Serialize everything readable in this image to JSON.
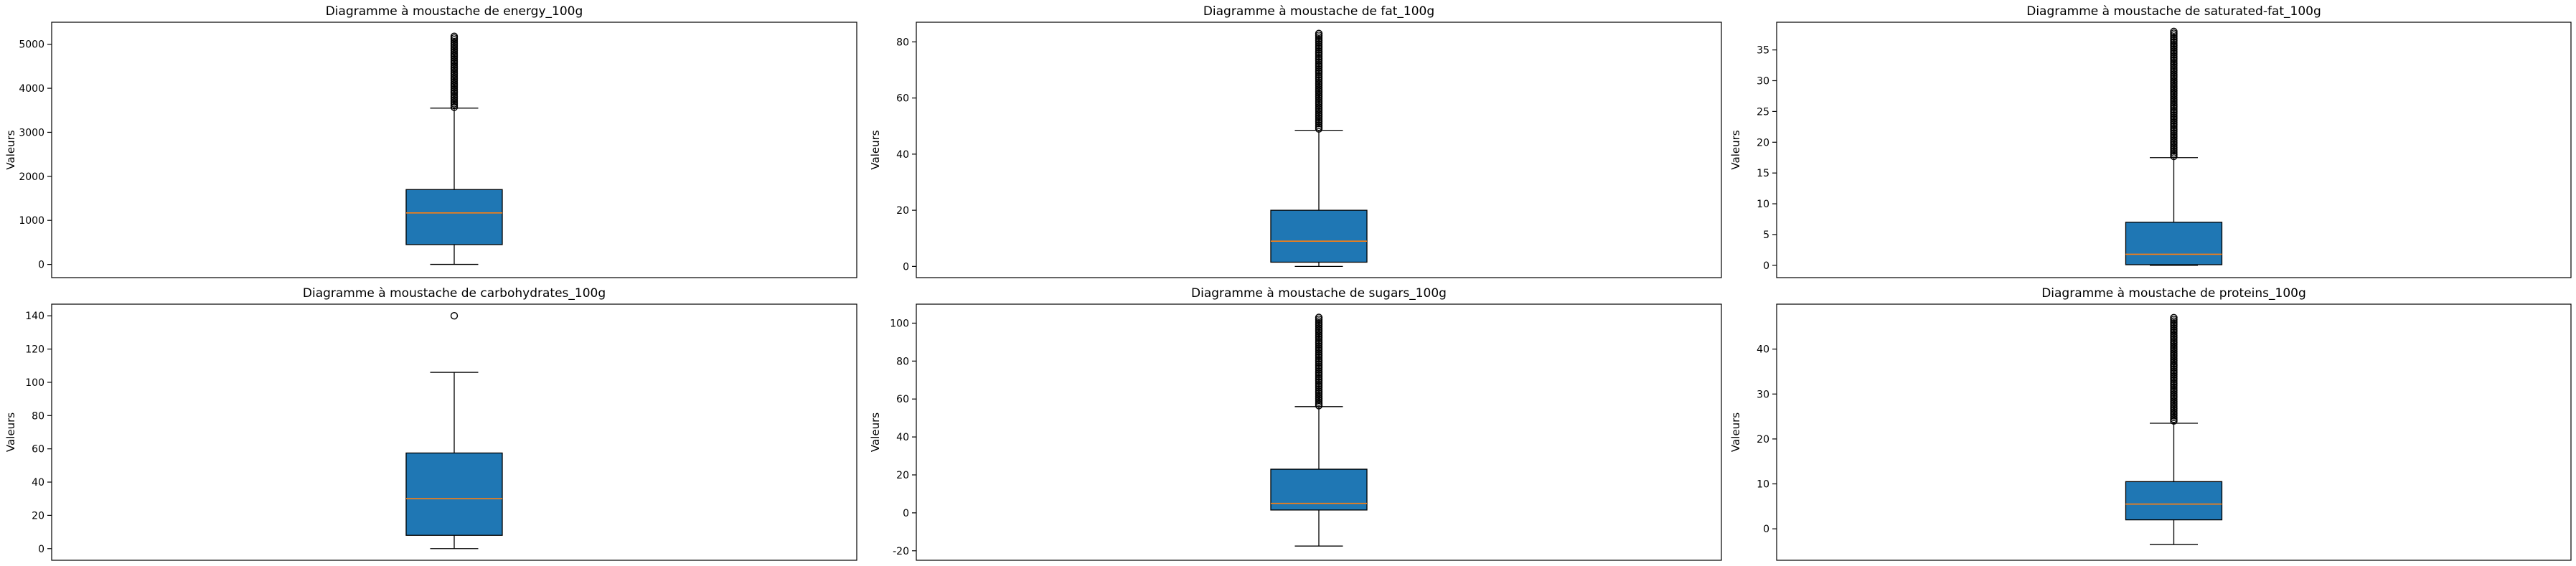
{
  "chart_data": [
    {
      "type": "box",
      "title": "Diagramme à moustache de energy_100g",
      "ylabel": "Valeurs",
      "ylim": [
        -300,
        5500
      ],
      "yticks": [
        0,
        1000,
        2000,
        3000,
        4000,
        5000
      ],
      "box": {
        "whisker_low": 0,
        "q1": 450,
        "median": 1170,
        "q3": 1700,
        "whisker_high": 3550
      },
      "outliers": {
        "low": 3570,
        "high": 5180
      },
      "colors": {
        "box": "#1f77b4",
        "median": "#ff7f0e"
      }
    },
    {
      "type": "box",
      "title": "Diagramme à moustache de fat_100g",
      "ylabel": "Valeurs",
      "ylim": [
        -4,
        87
      ],
      "yticks": [
        0,
        20,
        40,
        60,
        80
      ],
      "box": {
        "whisker_low": 0,
        "q1": 1.5,
        "median": 9,
        "q3": 20,
        "whisker_high": 48.5
      },
      "outliers": {
        "low": 49,
        "high": 83
      },
      "colors": {
        "box": "#1f77b4",
        "median": "#ff7f0e"
      }
    },
    {
      "type": "box",
      "title": "Diagramme à moustache de saturated-fat_100g",
      "ylabel": "Valeurs",
      "ylim": [
        -2,
        39.5
      ],
      "yticks": [
        0,
        5,
        10,
        15,
        20,
        25,
        30,
        35
      ],
      "box": {
        "whisker_low": 0,
        "q1": 0.1,
        "median": 1.8,
        "q3": 7,
        "whisker_high": 17.5
      },
      "outliers": {
        "low": 17.7,
        "high": 38
      },
      "colors": {
        "box": "#1f77b4",
        "median": "#ff7f0e"
      }
    },
    {
      "type": "box",
      "title": "Diagramme à moustache de carbohydrates_100g",
      "ylabel": "Valeurs",
      "ylim": [
        -7,
        147
      ],
      "yticks": [
        0,
        20,
        40,
        60,
        80,
        100,
        120,
        140
      ],
      "box": {
        "whisker_low": 0,
        "q1": 8,
        "median": 30,
        "q3": 57.5,
        "whisker_high": 106
      },
      "outliers": {
        "low": 140,
        "high": 140
      },
      "colors": {
        "box": "#1f77b4",
        "median": "#ff7f0e"
      }
    },
    {
      "type": "box",
      "title": "Diagramme à moustache de sugars_100g",
      "ylabel": "Valeurs",
      "ylim": [
        -25,
        110
      ],
      "yticks": [
        -20,
        0,
        20,
        40,
        60,
        80,
        100
      ],
      "box": {
        "whisker_low": -17.5,
        "q1": 1.5,
        "median": 5,
        "q3": 23,
        "whisker_high": 56
      },
      "outliers": {
        "low": 56.5,
        "high": 103
      },
      "colors": {
        "box": "#1f77b4",
        "median": "#ff7f0e"
      }
    },
    {
      "type": "box",
      "title": "Diagramme à moustache de proteins_100g",
      "ylabel": "Valeurs",
      "ylim": [
        -7,
        50
      ],
      "yticks": [
        0,
        10,
        20,
        30,
        40
      ],
      "box": {
        "whisker_low": -3.5,
        "q1": 2,
        "median": 5.5,
        "q3": 10.5,
        "whisker_high": 23.5
      },
      "outliers": {
        "low": 24,
        "high": 47
      },
      "colors": {
        "box": "#1f77b4",
        "median": "#ff7f0e"
      }
    }
  ]
}
